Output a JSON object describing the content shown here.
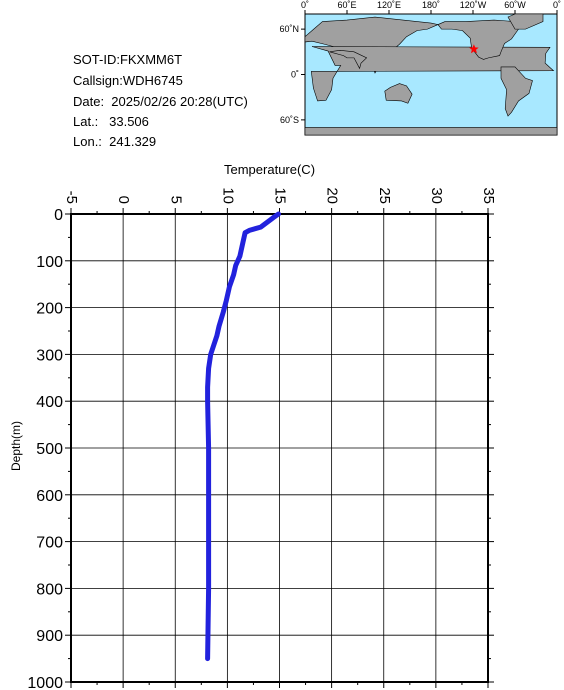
{
  "info": {
    "sot_id": "SOT-ID:FKXMM6T",
    "callsign": "Callsign:WDH6745",
    "date": "Date:  2025/02/26 20:28(UTC)",
    "lat": "Lat.:   33.506",
    "lon": "Lon.:  241.329"
  },
  "map": {
    "lon_labels": [
      "0˚",
      "60˚E",
      "120˚E",
      "180˚",
      "120˚W",
      "60˚W",
      "0˚"
    ],
    "lat_labels": [
      "60˚N",
      "0˚",
      "60˚S"
    ],
    "ocean_color": "#a8e8ff",
    "land_color": "#a0a0a0",
    "marker_color": "#ff0000",
    "marker": {
      "lon": 241.329,
      "lat": 33.506
    }
  },
  "chart_data": {
    "type": "line",
    "title": "",
    "xlabel": "Temperature(C)",
    "ylabel": "Depth(m)",
    "xlim": [
      -5,
      35
    ],
    "ylim": [
      1000,
      0
    ],
    "x_ticks": [
      "-5",
      "0",
      "5",
      "10",
      "15",
      "20",
      "25",
      "30",
      "35"
    ],
    "y_ticks": [
      "0",
      "100",
      "200",
      "300",
      "400",
      "500",
      "600",
      "700",
      "800",
      "900",
      "1000"
    ],
    "grid": true,
    "line_color": "#2222dd",
    "series": [
      {
        "x": [
          14.9,
          14.4,
          13.2,
          12.1,
          11.7,
          11.5,
          11.2,
          10.8,
          10.6,
          10.2,
          9.9,
          9.6,
          9.4,
          9.2,
          9.0,
          8.7,
          8.4,
          8.2,
          8.1,
          8.1,
          8.2,
          8.2,
          8.2,
          8.2,
          8.1
        ],
        "y": [
          0,
          8,
          28,
          35,
          40,
          60,
          90,
          110,
          130,
          155,
          185,
          210,
          225,
          240,
          260,
          280,
          300,
          330,
          370,
          400,
          500,
          600,
          700,
          800,
          950
        ]
      }
    ]
  }
}
